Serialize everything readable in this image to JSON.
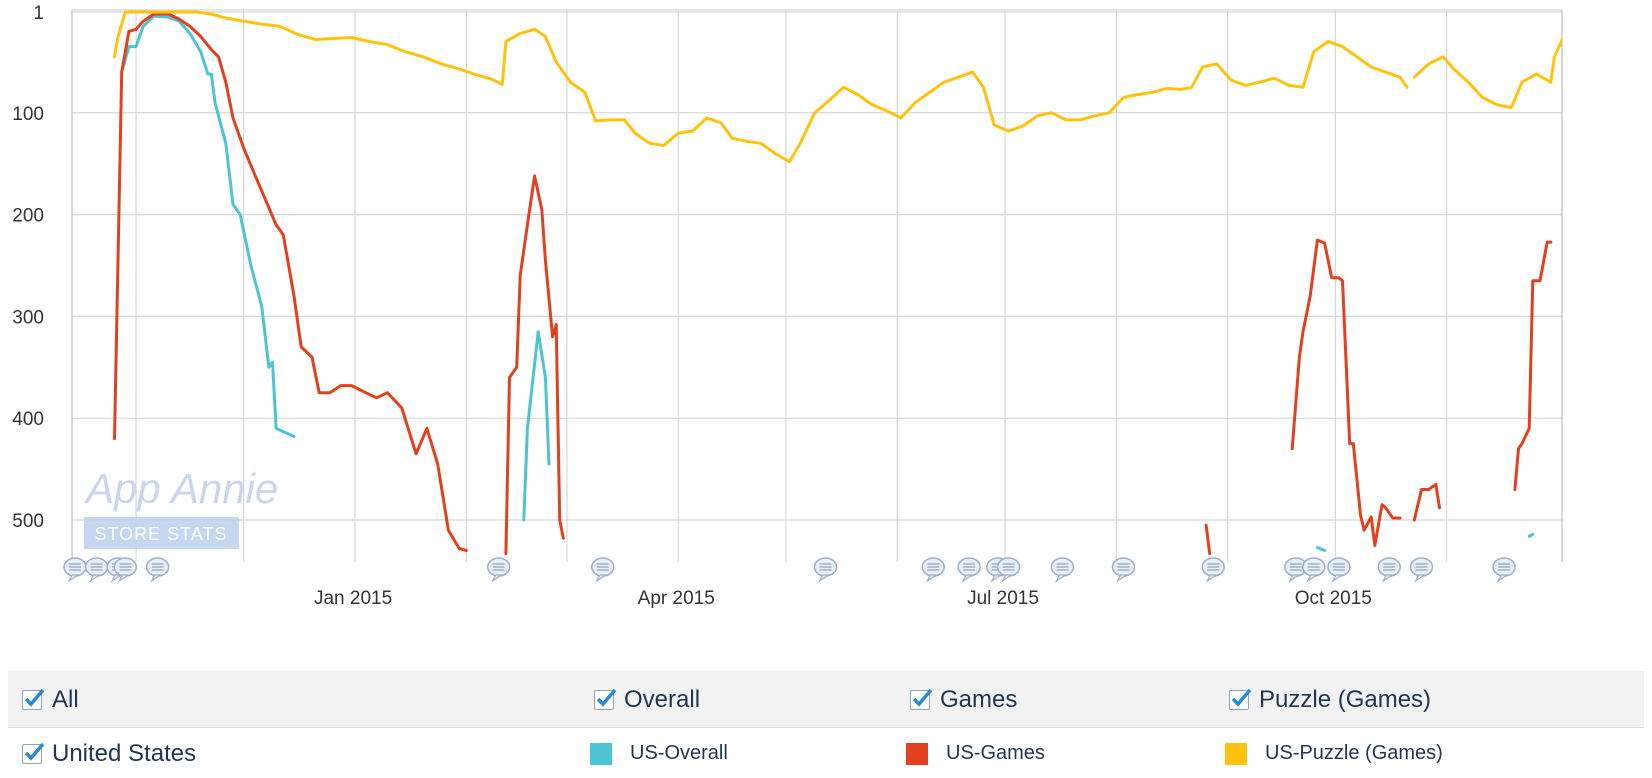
{
  "chart_data": {
    "type": "line",
    "title": "",
    "xlabel": "",
    "ylabel": "",
    "y_axis_reversed": true,
    "ylim": [
      1,
      540
    ],
    "yticks": [
      1,
      100,
      200,
      300,
      400,
      500
    ],
    "xlim": [
      "2014-10-15",
      "2015-11-27"
    ],
    "xticks": [
      {
        "date": "2015-01-01",
        "label": "Jan 2015"
      },
      {
        "date": "2015-04-01",
        "label": "Apr 2015"
      },
      {
        "date": "2015-07-01",
        "label": "Jul 2015"
      },
      {
        "date": "2015-10-01",
        "label": "Oct 2015"
      }
    ],
    "grid": true,
    "watermark": {
      "title": "App Annie",
      "subtitle": "STORE STATS"
    },
    "annotation_dates": [
      "2014-10-15",
      "2014-10-21",
      "2014-10-27",
      "2014-10-29",
      "2014-11-07",
      "2015-02-10",
      "2015-03-11",
      "2015-05-12",
      "2015-06-11",
      "2015-06-21",
      "2015-06-29",
      "2015-07-02",
      "2015-07-17",
      "2015-08-03",
      "2015-08-28",
      "2015-09-20",
      "2015-09-25",
      "2015-10-02",
      "2015-10-16",
      "2015-10-25",
      "2015-11-17"
    ],
    "series": [
      {
        "name": "US-Overall",
        "color": "#4dc4d4",
        "segments": [
          [
            [
              "2014-10-28",
              60
            ],
            [
              "2014-10-30",
              35
            ],
            [
              "2014-11-01",
              35
            ],
            [
              "2014-11-03",
              15
            ],
            [
              "2014-11-06",
              5
            ],
            [
              "2014-11-10",
              6
            ],
            [
              "2014-11-13",
              10
            ],
            [
              "2014-11-16",
              22
            ],
            [
              "2014-11-19",
              40
            ],
            [
              "2014-11-21",
              62
            ],
            [
              "2014-11-22",
              62
            ],
            [
              "2014-11-23",
              90
            ],
            [
              "2014-11-26",
              130
            ],
            [
              "2014-11-28",
              190
            ],
            [
              "2014-11-30",
              200
            ],
            [
              "2014-12-03",
              250
            ],
            [
              "2014-12-06",
              290
            ],
            [
              "2014-12-08",
              350
            ],
            [
              "2014-12-09",
              345
            ],
            [
              "2014-12-10",
              410
            ],
            [
              "2014-12-15",
              418
            ]
          ],
          [
            [
              "2015-02-17",
              500
            ],
            [
              "2015-02-18",
              410
            ],
            [
              "2015-02-21",
              315
            ],
            [
              "2015-02-23",
              360
            ],
            [
              "2015-02-24",
              445
            ]
          ],
          [
            [
              "2015-09-26",
              527
            ],
            [
              "2015-09-28",
              530
            ]
          ],
          [
            [
              "2015-11-24",
              516
            ],
            [
              "2015-11-25",
              514
            ]
          ]
        ]
      },
      {
        "name": "US-Games",
        "color": "#e2401f",
        "segments": [
          [
            [
              "2014-10-26",
              420
            ],
            [
              "2014-10-28",
              60
            ],
            [
              "2014-10-30",
              20
            ],
            [
              "2014-11-01",
              18
            ],
            [
              "2014-11-03",
              10
            ],
            [
              "2014-11-06",
              3
            ],
            [
              "2014-11-10",
              3
            ],
            [
              "2014-11-13",
              8
            ],
            [
              "2014-11-16",
              15
            ],
            [
              "2014-11-19",
              25
            ],
            [
              "2014-11-22",
              38
            ],
            [
              "2014-11-24",
              45
            ],
            [
              "2014-11-26",
              70
            ],
            [
              "2014-11-28",
              105
            ],
            [
              "2014-12-01",
              135
            ],
            [
              "2014-12-04",
              160
            ],
            [
              "2014-12-07",
              185
            ],
            [
              "2014-12-10",
              210
            ],
            [
              "2014-12-12",
              220
            ],
            [
              "2014-12-15",
              280
            ],
            [
              "2014-12-17",
              330
            ],
            [
              "2014-12-20",
              340
            ],
            [
              "2014-12-22",
              375
            ],
            [
              "2014-12-25",
              375
            ],
            [
              "2014-12-28",
              368
            ],
            [
              "2014-12-31",
              368
            ],
            [
              "2015-01-04",
              375
            ],
            [
              "2015-01-07",
              380
            ],
            [
              "2015-01-10",
              375
            ],
            [
              "2015-01-14",
              390
            ],
            [
              "2015-01-18",
              435
            ],
            [
              "2015-01-21",
              410
            ],
            [
              "2015-01-24",
              445
            ],
            [
              "2015-01-27",
              510
            ],
            [
              "2015-01-30",
              528
            ],
            [
              "2015-02-01",
              530
            ]
          ],
          [
            [
              "2015-02-12",
              533
            ],
            [
              "2015-02-13",
              360
            ],
            [
              "2015-02-15",
              350
            ],
            [
              "2015-02-16",
              260
            ],
            [
              "2015-02-18",
              210
            ],
            [
              "2015-02-20",
              162
            ],
            [
              "2015-02-22",
              195
            ],
            [
              "2015-02-23",
              245
            ],
            [
              "2015-02-25",
              320
            ],
            [
              "2015-02-26",
              308
            ],
            [
              "2015-02-27",
              500
            ],
            [
              "2015-02-28",
              518
            ]
          ],
          [
            [
              "2015-08-26",
              505
            ],
            [
              "2015-08-27",
              533
            ]
          ],
          [
            [
              "2015-09-19",
              430
            ],
            [
              "2015-09-21",
              340
            ],
            [
              "2015-09-22",
              315
            ],
            [
              "2015-09-24",
              280
            ],
            [
              "2015-09-26",
              225
            ],
            [
              "2015-09-28",
              228
            ],
            [
              "2015-09-30",
              262
            ],
            [
              "2015-10-02",
              262
            ],
            [
              "2015-10-03",
              265
            ],
            [
              "2015-10-05",
              425
            ],
            [
              "2015-10-06",
              425
            ],
            [
              "2015-10-08",
              495
            ],
            [
              "2015-10-09",
              510
            ],
            [
              "2015-10-11",
              497
            ],
            [
              "2015-10-12",
              525
            ],
            [
              "2015-10-14",
              485
            ],
            [
              "2015-10-15",
              488
            ],
            [
              "2015-10-17",
              498
            ],
            [
              "2015-10-19",
              498
            ]
          ],
          [
            [
              "2015-10-23",
              500
            ],
            [
              "2015-10-25",
              470
            ],
            [
              "2015-10-27",
              470
            ],
            [
              "2015-10-29",
              465
            ],
            [
              "2015-10-30",
              488
            ]
          ],
          [
            [
              "2015-11-20",
              470
            ],
            [
              "2015-11-21",
              430
            ],
            [
              "2015-11-22",
              425
            ],
            [
              "2015-11-24",
              410
            ],
            [
              "2015-11-25",
              265
            ],
            [
              "2015-11-27",
              265
            ],
            [
              "2015-11-29",
              227
            ],
            [
              "2015-11-30",
              227
            ]
          ]
        ]
      },
      {
        "name": "US-Puzzle (Games)",
        "color": "#ffc20e",
        "segments": [
          [
            [
              "2014-10-26",
              45
            ],
            [
              "2014-10-27",
              25
            ],
            [
              "2014-10-29",
              1
            ],
            [
              "2014-11-01",
              1
            ],
            [
              "2014-11-05",
              1
            ],
            [
              "2014-11-09",
              1
            ],
            [
              "2014-11-13",
              1
            ],
            [
              "2014-11-18",
              1
            ],
            [
              "2014-11-22",
              3
            ],
            [
              "2014-11-26",
              7
            ],
            [
              "2014-12-01",
              10
            ],
            [
              "2014-12-06",
              13
            ],
            [
              "2014-12-11",
              15
            ],
            [
              "2014-12-16",
              23
            ],
            [
              "2014-12-21",
              28
            ],
            [
              "2014-12-26",
              27
            ],
            [
              "2014-12-31",
              26
            ],
            [
              "2015-01-05",
              30
            ],
            [
              "2015-01-10",
              33
            ],
            [
              "2015-01-15",
              40
            ],
            [
              "2015-01-20",
              45
            ],
            [
              "2015-01-25",
              52
            ],
            [
              "2015-01-30",
              57
            ],
            [
              "2015-02-04",
              63
            ],
            [
              "2015-02-08",
              67
            ],
            [
              "2015-02-11",
              72
            ],
            [
              "2015-02-12",
              30
            ],
            [
              "2015-02-16",
              22
            ],
            [
              "2015-02-20",
              18
            ],
            [
              "2015-02-23",
              25
            ],
            [
              "2015-02-26",
              50
            ],
            [
              "2015-03-02",
              70
            ],
            [
              "2015-03-06",
              80
            ],
            [
              "2015-03-09",
              108
            ],
            [
              "2015-03-13",
              107
            ],
            [
              "2015-03-17",
              107
            ],
            [
              "2015-03-20",
              120
            ],
            [
              "2015-03-24",
              130
            ],
            [
              "2015-03-28",
              132
            ],
            [
              "2015-04-01",
              120
            ],
            [
              "2015-04-05",
              118
            ],
            [
              "2015-04-09",
              105
            ],
            [
              "2015-04-13",
              110
            ],
            [
              "2015-04-16",
              125
            ],
            [
              "2015-04-20",
              128
            ],
            [
              "2015-04-24",
              130
            ],
            [
              "2015-04-28",
              140
            ],
            [
              "2015-05-02",
              148
            ],
            [
              "2015-05-05",
              130
            ],
            [
              "2015-05-09",
              100
            ],
            [
              "2015-05-13",
              88
            ],
            [
              "2015-05-17",
              75
            ],
            [
              "2015-05-21",
              82
            ],
            [
              "2015-05-25",
              92
            ],
            [
              "2015-05-29",
              98
            ],
            [
              "2015-06-02",
              105
            ],
            [
              "2015-06-06",
              90
            ],
            [
              "2015-06-10",
              80
            ],
            [
              "2015-06-14",
              70
            ],
            [
              "2015-06-18",
              65
            ],
            [
              "2015-06-22",
              60
            ],
            [
              "2015-06-25",
              75
            ],
            [
              "2015-06-28",
              112
            ],
            [
              "2015-07-02",
              118
            ],
            [
              "2015-07-06",
              113
            ],
            [
              "2015-07-10",
              103
            ],
            [
              "2015-07-14",
              100
            ],
            [
              "2015-07-18",
              107
            ],
            [
              "2015-07-22",
              107
            ],
            [
              "2015-07-26",
              103
            ],
            [
              "2015-07-30",
              100
            ],
            [
              "2015-08-03",
              85
            ],
            [
              "2015-08-07",
              82
            ],
            [
              "2015-08-11",
              80
            ],
            [
              "2015-08-15",
              76
            ],
            [
              "2015-08-19",
              77
            ],
            [
              "2015-08-22",
              75
            ],
            [
              "2015-08-25",
              55
            ],
            [
              "2015-08-29",
              52
            ],
            [
              "2015-09-02",
              68
            ],
            [
              "2015-09-06",
              73
            ],
            [
              "2015-09-10",
              70
            ],
            [
              "2015-09-14",
              66
            ],
            [
              "2015-09-18",
              73
            ],
            [
              "2015-09-22",
              75
            ],
            [
              "2015-09-25",
              40
            ],
            [
              "2015-09-29",
              30
            ],
            [
              "2015-10-03",
              35
            ],
            [
              "2015-10-07",
              45
            ],
            [
              "2015-10-11",
              55
            ],
            [
              "2015-10-15",
              60
            ],
            [
              "2015-10-19",
              65
            ],
            [
              "2015-10-21",
              75
            ]
          ],
          [
            [
              "2015-10-23",
              65
            ],
            [
              "2015-10-27",
              52
            ],
            [
              "2015-10-31",
              45
            ],
            [
              "2015-11-03",
              57
            ],
            [
              "2015-11-07",
              70
            ],
            [
              "2015-11-11",
              85
            ],
            [
              "2015-11-15",
              92
            ],
            [
              "2015-11-19",
              95
            ],
            [
              "2015-11-22",
              70
            ],
            [
              "2015-11-26",
              62
            ],
            [
              "2015-11-30",
              70
            ],
            [
              "2015-12-01",
              45
            ],
            [
              "2015-12-03",
              30
            ],
            [
              "2015-12-04",
              20
            ]
          ]
        ]
      }
    ]
  },
  "legend": {
    "filters": [
      {
        "label": "All",
        "checked": true
      },
      {
        "label": "Overall",
        "checked": true
      },
      {
        "label": "Games",
        "checked": true
      },
      {
        "label": "Puzzle (Games)",
        "checked": true
      }
    ],
    "country": {
      "label": "United States",
      "checked": true
    },
    "series": [
      {
        "label": "US-Overall",
        "color": "#4dc4d4"
      },
      {
        "label": "US-Games",
        "color": "#e2401f"
      },
      {
        "label": "US-Puzzle (Games)",
        "color": "#ffc20e"
      }
    ]
  }
}
